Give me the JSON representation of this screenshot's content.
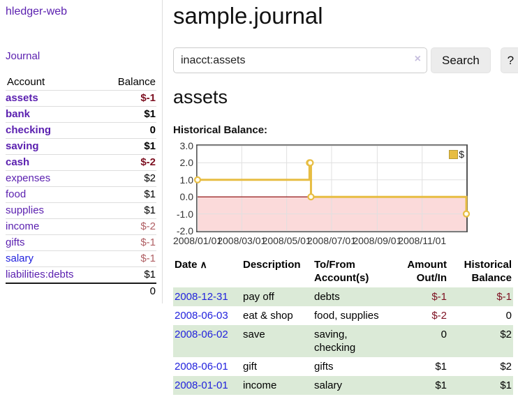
{
  "app": {
    "brand": "hledger-web"
  },
  "sidebar": {
    "journal_link": "Journal",
    "accounts": {
      "account_header": "Account",
      "balance_header": "Balance",
      "rows": [
        {
          "name": "assets",
          "balance": "$-1",
          "depth": 1,
          "bold": true,
          "tone": "neg-strong",
          "blue": false
        },
        {
          "name": "bank",
          "balance": "$1",
          "depth": 2,
          "bold": true,
          "tone": "normal",
          "blue": false
        },
        {
          "name": "checking",
          "balance": "0",
          "depth": 3,
          "bold": true,
          "tone": "normal",
          "blue": false
        },
        {
          "name": "saving",
          "balance": "$1",
          "depth": 3,
          "bold": true,
          "tone": "normal",
          "blue": false
        },
        {
          "name": "cash",
          "balance": "$-2",
          "depth": 2,
          "bold": true,
          "tone": "neg-strong",
          "blue": false
        },
        {
          "name": "expenses",
          "balance": "$2",
          "depth": 1,
          "bold": false,
          "tone": "normal",
          "blue": false
        },
        {
          "name": "food",
          "balance": "$1",
          "depth": 2,
          "bold": false,
          "tone": "normal",
          "blue": false
        },
        {
          "name": "supplies",
          "balance": "$1",
          "depth": 2,
          "bold": false,
          "tone": "normal",
          "blue": false
        },
        {
          "name": "income",
          "balance": "$-2",
          "depth": 1,
          "bold": false,
          "tone": "neg-soft",
          "blue": false
        },
        {
          "name": "gifts",
          "balance": "$-1",
          "depth": 2,
          "bold": false,
          "tone": "neg-soft",
          "blue": false
        },
        {
          "name": "salary",
          "balance": "$-1",
          "depth": 2,
          "bold": false,
          "tone": "neg-soft",
          "blue": true
        },
        {
          "name": "liabilities:debts",
          "balance": "$1",
          "depth": 1,
          "bold": false,
          "tone": "normal",
          "blue": false
        }
      ],
      "total": "0"
    }
  },
  "main": {
    "title": "sample.journal",
    "search": {
      "value": "inacct:assets",
      "clear_icon": "×",
      "search_button": "Search",
      "help_button": "?"
    },
    "account_heading": "assets",
    "chart_heading": "Historical Balance:"
  },
  "chart_data": {
    "type": "line",
    "step": true,
    "title": "Historical Balance:",
    "series": [
      {
        "name": "$",
        "color": "#e7bd42",
        "points": [
          [
            "2008-01-01",
            1
          ],
          [
            "2008-06-01",
            2
          ],
          [
            "2008-06-02",
            2
          ],
          [
            "2008-06-03",
            0
          ],
          [
            "2008-12-31",
            -1
          ]
        ]
      }
    ],
    "x_range": [
      "2008-01-01",
      "2008-12-31"
    ],
    "x_ticks": [
      "2008/01/01",
      "2008/03/01",
      "2008/05/01",
      "2008/07/01",
      "2008/09/01",
      "2008/11/01"
    ],
    "y_ticks": [
      "3.0",
      "2.0",
      "1.0",
      "0.0",
      "-1.0",
      "-2.0"
    ],
    "ylim": [
      -2,
      3
    ],
    "grid": true,
    "negative_fill": "#fbdada",
    "zero_line_color": "#8b0000",
    "marker_fill": "#fffdf0",
    "legend": {
      "label": "$",
      "position": "top-right"
    }
  },
  "register": {
    "sort_icon": "∧",
    "headers": {
      "date": "Date",
      "description": "Description",
      "accounts": "To/From\nAccount(s)",
      "amount": "Amount\nOut/In",
      "balance": "Historical\nBalance"
    },
    "rows": [
      {
        "date": "2008-12-31",
        "description": "pay off",
        "accounts": "debts",
        "amount": "$-1",
        "amount_negative": true,
        "balance": "$-1",
        "balance_negative": true
      },
      {
        "date": "2008-06-03",
        "description": "eat & shop",
        "accounts": "food, supplies",
        "amount": "$-2",
        "amount_negative": true,
        "balance": "0",
        "balance_negative": false
      },
      {
        "date": "2008-06-02",
        "description": "save",
        "accounts": "saving,\nchecking",
        "amount": "0",
        "amount_negative": false,
        "balance": "$2",
        "balance_negative": false
      },
      {
        "date": "2008-06-01",
        "description": "gift",
        "accounts": "gifts",
        "amount": "$1",
        "amount_negative": false,
        "balance": "$2",
        "balance_negative": false
      },
      {
        "date": "2008-01-01",
        "description": "income",
        "accounts": "salary",
        "amount": "$1",
        "amount_negative": false,
        "balance": "$1",
        "balance_negative": false
      }
    ]
  },
  "colors": {
    "link_purple": "#5a1faf",
    "link_blue": "#2222dd",
    "negative_strong": "#7d1021",
    "negative_soft": "#b05f64",
    "row_stripe_green": "#dbead7",
    "chart_line_gold": "#e7bd42",
    "chart_negative_pink": "#fbdada",
    "chart_zero_line": "#8b0000"
  }
}
